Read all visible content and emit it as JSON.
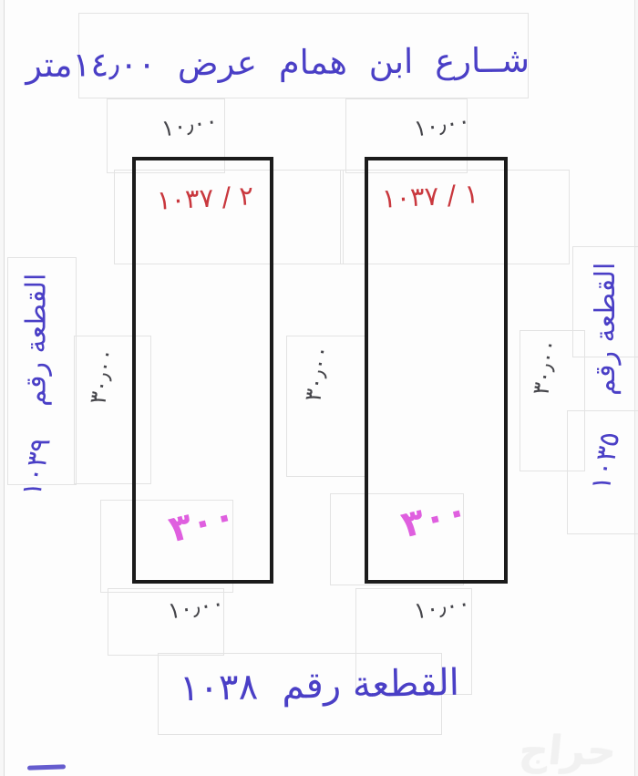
{
  "colors": {
    "blue": "#4a3fc6",
    "red": "#c9383e",
    "pink": "#df5fdf",
    "ink": "#45454a",
    "line": "#1b1b1b",
    "faint": "#e3e3e3",
    "watermark": "#f1f1f1",
    "bg": "#fdfdfd"
  },
  "street": {
    "label": "شــارع ابن همام عرض ١٤٫٠٠متر"
  },
  "plots": {
    "left": {
      "id": "٢ / ١٠٣٧",
      "area": "٣٠٠"
    },
    "right": {
      "id": "١ / ١٠٣٧",
      "area": "٣٠٠"
    }
  },
  "dimensions": {
    "top_left": "١٠٫٠٠",
    "top_right": "١٠٫٠٠",
    "bottom_left": "١٠٫٠٠",
    "bottom_right": "١٠٫٠٠",
    "side_left": "٣٠٫٠٠",
    "side_middle": "٣٠٫٠٠",
    "side_right": "٣٠٫٠٠"
  },
  "neighbors": {
    "left": {
      "label": "القطعة رقم",
      "number": "١٠٣٩"
    },
    "right": {
      "label": "القطعة رقم",
      "number": "١٠٣٥"
    },
    "bottom": {
      "label": "القطعة رقم",
      "number": "١٠٣٨"
    }
  },
  "watermark": {
    "label": "حراج"
  }
}
